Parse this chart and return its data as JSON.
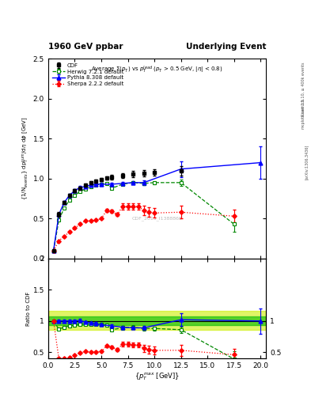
{
  "title_left": "1960 GeV ppbar",
  "title_right": "Underlying Event",
  "plot_title": "Average $\\Sigma(p_T)$ vs $p_T^{lead}$ ($p_T$ > 0.5 GeV, $|\\eta|$ < 0.8)",
  "ylabel_main": "{1/N$_{events}$} dp$_T^{sum}$/d$\\eta$ d$\\phi$ [GeV]",
  "ylabel_ratio": "Ratio to CDF",
  "xlabel": "{$p_T^{max}$ [GeV]}",
  "watermark": "CDF_2015_I1388868",
  "right_label": "Rivet 3.1.10, ≥ 400k events",
  "arxiv_label": "[arXiv:1306.3436]",
  "mcplots_label": "mcplots.cern.ch",
  "cdf_x": [
    0.5,
    1.0,
    1.5,
    2.0,
    2.5,
    3.0,
    3.5,
    4.0,
    4.5,
    5.0,
    5.5,
    6.0,
    7.0,
    8.0,
    9.0,
    10.0,
    12.5
  ],
  "cdf_y": [
    0.1,
    0.55,
    0.7,
    0.79,
    0.85,
    0.88,
    0.92,
    0.95,
    0.97,
    0.99,
    1.01,
    1.02,
    1.04,
    1.06,
    1.07,
    1.08,
    1.1
  ],
  "cdf_yerr": [
    0.01,
    0.03,
    0.02,
    0.02,
    0.02,
    0.02,
    0.02,
    0.02,
    0.02,
    0.02,
    0.02,
    0.03,
    0.03,
    0.04,
    0.04,
    0.04,
    0.06
  ],
  "herwig_x": [
    0.5,
    1.0,
    1.5,
    2.0,
    2.5,
    3.0,
    3.5,
    4.0,
    4.5,
    5.0,
    5.5,
    6.0,
    7.0,
    8.0,
    9.0,
    10.0,
    12.5,
    17.5
  ],
  "herwig_y": [
    0.1,
    0.48,
    0.63,
    0.73,
    0.79,
    0.84,
    0.87,
    0.9,
    0.92,
    0.93,
    0.94,
    0.88,
    0.93,
    0.95,
    0.94,
    0.95,
    0.95,
    0.43
  ],
  "herwig_yerr": [
    0.005,
    0.01,
    0.01,
    0.01,
    0.01,
    0.01,
    0.01,
    0.01,
    0.01,
    0.01,
    0.01,
    0.02,
    0.02,
    0.02,
    0.02,
    0.02,
    0.04,
    0.1
  ],
  "pythia_x": [
    0.5,
    1.0,
    1.5,
    2.0,
    2.5,
    3.0,
    3.5,
    4.0,
    4.5,
    5.0,
    6.0,
    7.0,
    8.0,
    9.0,
    12.5,
    20.0
  ],
  "pythia_y": [
    0.1,
    0.55,
    0.7,
    0.79,
    0.85,
    0.89,
    0.9,
    0.92,
    0.93,
    0.93,
    0.93,
    0.94,
    0.95,
    0.95,
    1.12,
    1.2
  ],
  "pythia_yerr": [
    0.01,
    0.02,
    0.02,
    0.02,
    0.02,
    0.02,
    0.02,
    0.02,
    0.02,
    0.02,
    0.02,
    0.02,
    0.02,
    0.03,
    0.1,
    0.2
  ],
  "sherpa_x": [
    0.5,
    1.0,
    1.5,
    2.0,
    2.5,
    3.0,
    3.5,
    4.0,
    4.5,
    5.0,
    5.5,
    6.0,
    6.5,
    7.0,
    7.5,
    8.0,
    8.5,
    9.0,
    9.5,
    10.0,
    12.5,
    17.5
  ],
  "sherpa_y": [
    0.1,
    0.22,
    0.28,
    0.33,
    0.38,
    0.43,
    0.47,
    0.47,
    0.48,
    0.5,
    0.6,
    0.59,
    0.55,
    0.65,
    0.65,
    0.65,
    0.65,
    0.6,
    0.58,
    0.57,
    0.58,
    0.53
  ],
  "sherpa_yerr": [
    0.01,
    0.01,
    0.01,
    0.01,
    0.01,
    0.01,
    0.01,
    0.01,
    0.01,
    0.01,
    0.02,
    0.02,
    0.02,
    0.04,
    0.04,
    0.04,
    0.04,
    0.06,
    0.06,
    0.06,
    0.08,
    0.08
  ],
  "herwig_ratio_x": [
    0.5,
    1.0,
    1.5,
    2.0,
    2.5,
    3.0,
    3.5,
    4.0,
    4.5,
    5.0,
    5.5,
    6.0,
    7.0,
    8.0,
    9.0,
    10.0,
    12.5,
    17.5
  ],
  "herwig_ratio_y": [
    1.0,
    0.87,
    0.9,
    0.92,
    0.93,
    0.95,
    0.95,
    0.95,
    0.95,
    0.94,
    0.93,
    0.86,
    0.89,
    0.9,
    0.88,
    0.88,
    0.86,
    0.39
  ],
  "herwig_ratio_err": [
    0.01,
    0.02,
    0.02,
    0.02,
    0.02,
    0.02,
    0.02,
    0.02,
    0.02,
    0.02,
    0.02,
    0.03,
    0.03,
    0.03,
    0.03,
    0.03,
    0.05,
    0.12
  ],
  "pythia_ratio_x": [
    0.5,
    1.0,
    1.5,
    2.0,
    2.5,
    3.0,
    3.5,
    4.0,
    4.5,
    5.0,
    6.0,
    7.0,
    8.0,
    9.0,
    12.5,
    20.0
  ],
  "pythia_ratio_y": [
    1.0,
    1.0,
    1.0,
    1.0,
    1.0,
    1.01,
    0.98,
    0.97,
    0.96,
    0.94,
    0.92,
    0.9,
    0.89,
    0.89,
    1.02,
    1.0
  ],
  "pythia_ratio_err": [
    0.01,
    0.02,
    0.02,
    0.02,
    0.02,
    0.02,
    0.02,
    0.02,
    0.02,
    0.02,
    0.02,
    0.02,
    0.02,
    0.03,
    0.1,
    0.2
  ],
  "sherpa_ratio_x": [
    0.5,
    1.0,
    1.5,
    2.0,
    2.5,
    3.0,
    3.5,
    4.0,
    4.5,
    5.0,
    5.5,
    6.0,
    6.5,
    7.0,
    7.5,
    8.0,
    8.5,
    9.0,
    9.5,
    10.0,
    12.5,
    17.5
  ],
  "sherpa_ratio_y": [
    1.0,
    0.4,
    0.4,
    0.42,
    0.45,
    0.49,
    0.51,
    0.5,
    0.5,
    0.51,
    0.6,
    0.58,
    0.54,
    0.63,
    0.63,
    0.62,
    0.62,
    0.56,
    0.54,
    0.53,
    0.53,
    0.46
  ],
  "sherpa_ratio_err": [
    0.01,
    0.01,
    0.01,
    0.01,
    0.01,
    0.01,
    0.01,
    0.01,
    0.01,
    0.01,
    0.02,
    0.02,
    0.02,
    0.04,
    0.04,
    0.04,
    0.04,
    0.06,
    0.06,
    0.06,
    0.09,
    0.09
  ],
  "cdf_color": "black",
  "herwig_color": "#008800",
  "pythia_color": "blue",
  "sherpa_color": "red",
  "main_ylim": [
    0.0,
    2.5
  ],
  "ratio_ylim": [
    0.4,
    2.0
  ],
  "xlim": [
    0.0,
    20.5
  ],
  "band_inner_color": "#00bb00",
  "band_outer_color": "#ccee00",
  "band_inner_low": 0.93,
  "band_inner_high": 1.07,
  "band_outer_low": 0.86,
  "band_outer_high": 1.16
}
